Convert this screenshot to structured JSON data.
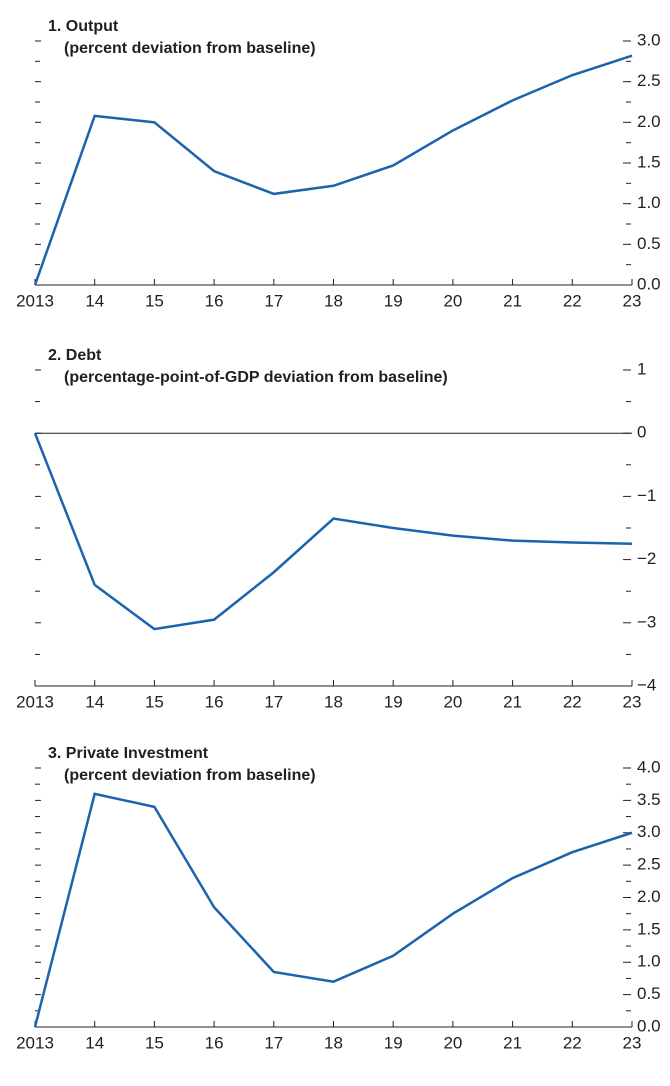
{
  "chart_data": [
    {
      "type": "line",
      "title": "1. Output",
      "subtitle": "(percent deviation from baseline)",
      "categories": [
        "2013",
        "14",
        "15",
        "16",
        "17",
        "18",
        "19",
        "20",
        "21",
        "22",
        "23"
      ],
      "values": [
        0,
        2.08,
        2.0,
        1.4,
        1.12,
        1.22,
        1.47,
        1.9,
        2.27,
        2.58,
        2.82
      ],
      "color": "#1c63ad",
      "ylim": [
        0,
        3
      ],
      "yticks": [
        {
          "value": 0,
          "label": "0.0"
        },
        {
          "value": 0.5,
          "label": "0.5"
        },
        {
          "value": 1,
          "label": "1.0"
        },
        {
          "value": 1.5,
          "label": "1.5"
        },
        {
          "value": 2,
          "label": "2.0"
        },
        {
          "value": 2.5,
          "label": "2.5"
        },
        {
          "value": 3,
          "label": "3.0"
        }
      ]
    },
    {
      "type": "line",
      "title": "2. Debt",
      "subtitle": "(percentage-point-of-GDP deviation from baseline)",
      "categories": [
        "2013",
        "14",
        "15",
        "16",
        "17",
        "18",
        "19",
        "20",
        "21",
        "22",
        "23"
      ],
      "values": [
        0,
        -2.4,
        -3.1,
        -2.95,
        -2.2,
        -1.35,
        -1.5,
        -1.62,
        -1.7,
        -1.73,
        -1.75
      ],
      "color": "#1c63ad",
      "ylim": [
        -4,
        1
      ],
      "yticks": [
        {
          "value": -4,
          "label": "−4"
        },
        {
          "value": -3,
          "label": "−3"
        },
        {
          "value": -2,
          "label": "−2"
        },
        {
          "value": -1,
          "label": "−1"
        },
        0,
        1
      ],
      "zeroline": true
    },
    {
      "type": "line",
      "title": "3. Private Investment",
      "subtitle": "(percent deviation from baseline)",
      "categories": [
        "2013",
        "14",
        "15",
        "16",
        "17",
        "18",
        "19",
        "20",
        "21",
        "22",
        "23"
      ],
      "values": [
        0,
        3.6,
        3.4,
        1.85,
        0.85,
        0.7,
        1.1,
        1.75,
        2.3,
        2.7,
        3.0
      ],
      "color": "#1c63ad",
      "ylim": [
        0,
        4
      ],
      "yticks": [
        {
          "value": 0,
          "label": "0.0"
        },
        {
          "value": 0.5,
          "label": "0.5"
        },
        {
          "value": 1,
          "label": "1.0"
        },
        {
          "value": 1.5,
          "label": "1.5"
        },
        {
          "value": 2,
          "label": "2.0"
        },
        {
          "value": 2.5,
          "label": "2.5"
        },
        {
          "value": 3,
          "label": "3.0"
        },
        {
          "value": 3.5,
          "label": "3.5"
        },
        {
          "value": 4,
          "label": "4.0"
        }
      ]
    }
  ]
}
